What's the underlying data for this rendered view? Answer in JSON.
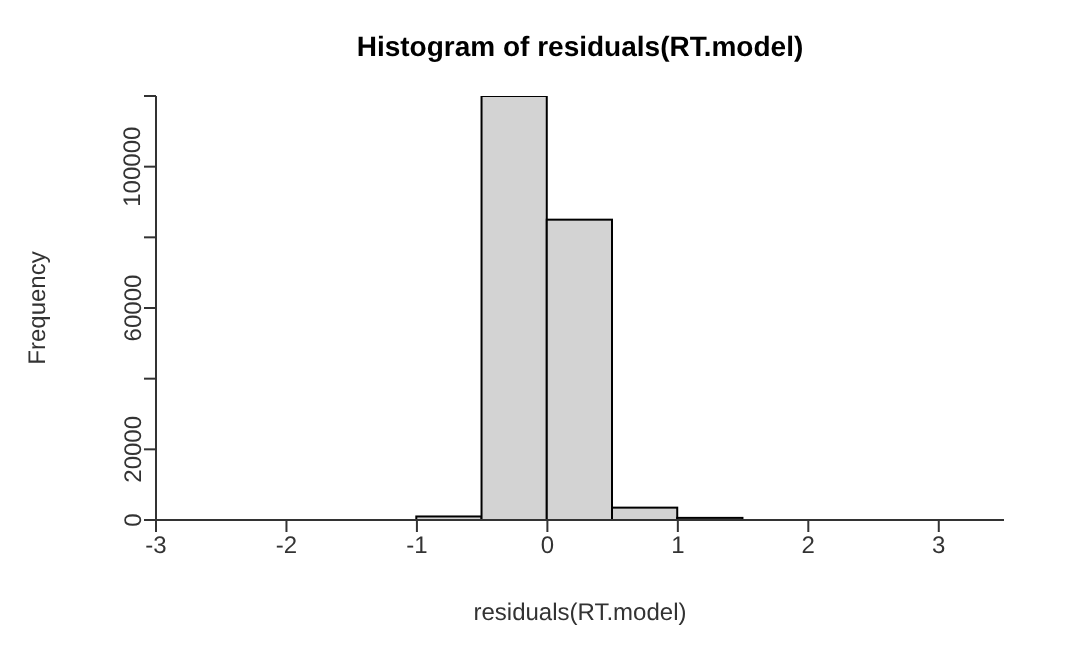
{
  "chart_data": {
    "type": "histogram",
    "title": "Histogram of residuals(RT.model)",
    "xlabel": "residuals(RT.model)",
    "ylabel": "Frequency",
    "bins": [
      -3,
      -2.5,
      -2,
      -1.5,
      -1,
      -0.5,
      0,
      0.5,
      1,
      1.5,
      2,
      2.5,
      3,
      3.5
    ],
    "values": [
      0,
      0,
      0,
      0,
      1000,
      120000,
      85000,
      3500,
      600,
      0,
      0,
      0,
      0
    ],
    "color": "#d3d3d3",
    "xlim": [
      -3,
      3.5
    ],
    "xticks": [
      -3,
      -2,
      -1,
      0,
      1,
      2,
      3
    ],
    "ylim": [
      0,
      120000
    ],
    "yticks": [
      0,
      20000,
      {
        "value": 40000,
        "label": null
      },
      60000,
      {
        "value": 80000,
        "label": null
      },
      100000,
      {
        "value": 120000,
        "label": null
      }
    ],
    "grid": false,
    "legend": false
  }
}
